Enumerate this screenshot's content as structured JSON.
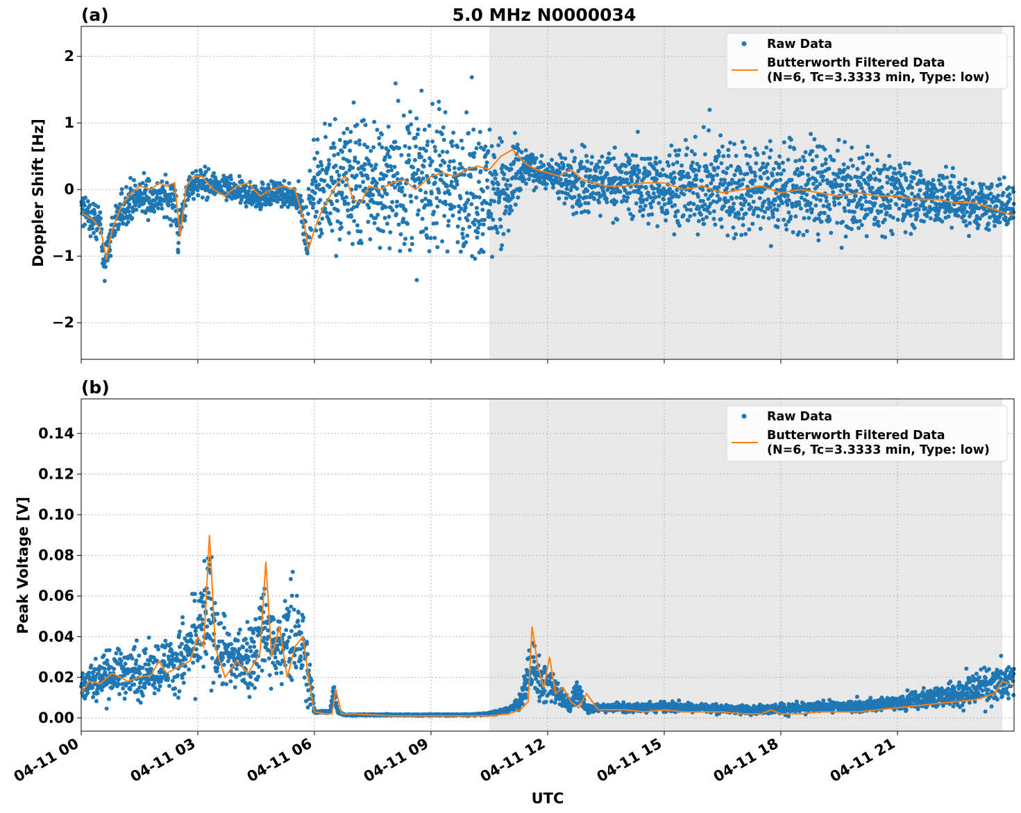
{
  "chart_data": [
    {
      "panel": "(a)",
      "type": "scatter",
      "title": "5.0 MHz N0000034",
      "xlabel": "",
      "ylabel": "Doppler Shift [Hz]",
      "xlim_hours": [
        0,
        24
      ],
      "ylim": [
        -2.55,
        2.45
      ],
      "yticks": [
        -2,
        -1,
        0,
        1,
        2
      ],
      "ytick_labels": [
        "−2",
        "−1",
        "0",
        "1",
        "2"
      ],
      "grid": true,
      "legend_position": "upper right",
      "shaded_region_hours": [
        10.5,
        23.7
      ],
      "series": [
        {
          "name": "Raw Data",
          "kind": "points",
          "color": "#1f77b4",
          "envelope_hours": [
            0,
            0.5,
            0.6,
            0.8,
            1.2,
            2,
            2.4,
            2.5,
            2.8,
            3,
            3.5,
            4,
            4.5,
            5,
            5.6,
            5.8,
            6,
            6.5,
            7,
            8,
            9,
            10,
            10.5,
            11,
            11.3,
            11.5,
            12,
            12.5,
            13,
            13.3,
            14,
            15,
            16,
            17,
            18,
            19,
            20,
            21,
            22,
            23,
            24
          ],
          "envelope_low": [
            -0.7,
            -0.9,
            -1.5,
            -1.0,
            -0.6,
            -0.5,
            -0.6,
            -1.1,
            -0.2,
            -0.2,
            -0.2,
            -0.3,
            -0.4,
            -0.3,
            -0.4,
            -1.2,
            -0.8,
            -1.2,
            -1.3,
            -1.4,
            -1.3,
            -1.4,
            -1.3,
            -1.2,
            -0.4,
            0.0,
            -0.1,
            -0.3,
            -0.9,
            -0.6,
            -0.6,
            -0.8,
            -0.9,
            -1.0,
            -1.0,
            -1.0,
            -0.9,
            -0.8,
            -0.8,
            -0.8,
            -0.7
          ],
          "envelope_high": [
            0.1,
            -0.2,
            -0.8,
            -0.2,
            0.3,
            0.3,
            0.3,
            -0.2,
            0.4,
            0.4,
            0.3,
            0.2,
            0.2,
            0.2,
            0.1,
            -0.1,
            0.8,
            1.5,
            1.6,
            1.6,
            1.6,
            1.5,
            1.3,
            1.0,
            0.8,
            0.7,
            0.5,
            0.6,
            1.0,
            0.8,
            0.8,
            0.9,
            1.0,
            1.1,
            1.0,
            1.0,
            0.8,
            0.7,
            0.5,
            0.3,
            0.1
          ]
        },
        {
          "name": "Butterworth Filtered Data\n(N=6, Tc=3.3333 min, Type: low)",
          "kind": "line",
          "color": "#ff7f0e",
          "x_hours": [
            0,
            0.3,
            0.5,
            0.65,
            0.8,
            1.0,
            1.2,
            1.5,
            1.8,
            2.0,
            2.2,
            2.4,
            2.55,
            2.7,
            2.9,
            3.1,
            3.4,
            3.7,
            4.0,
            4.3,
            4.6,
            4.9,
            5.2,
            5.5,
            5.7,
            5.85,
            6.0,
            6.2,
            6.4,
            6.6,
            6.8,
            7.0,
            7.2,
            7.4,
            7.7,
            8.0,
            8.3,
            8.6,
            9.0,
            9.3,
            9.6,
            9.9,
            10.2,
            10.5,
            10.8,
            11.1,
            11.4,
            11.7,
            12.0,
            12.3,
            12.6,
            12.9,
            13.2,
            13.5,
            14.0,
            14.5,
            15.0,
            15.5,
            16.0,
            16.5,
            17.0,
            17.5,
            18.0,
            18.5,
            19.0,
            19.5,
            20.0,
            20.5,
            21.0,
            21.5,
            22.0,
            22.5,
            23.0,
            23.5,
            24.0
          ],
          "y": [
            -0.35,
            -0.45,
            -0.6,
            -1.05,
            -0.6,
            -0.3,
            -0.1,
            0.05,
            0.0,
            0.1,
            0.05,
            0.1,
            -0.7,
            0.05,
            0.2,
            0.2,
            0.0,
            -0.1,
            0.05,
            0.1,
            -0.1,
            0.0,
            0.05,
            0.0,
            -0.4,
            -0.9,
            -0.6,
            -0.3,
            -0.1,
            0.1,
            0.2,
            -0.15,
            -0.2,
            0.05,
            0.0,
            0.1,
            0.15,
            0.0,
            0.2,
            0.25,
            0.2,
            0.3,
            0.35,
            0.3,
            0.5,
            0.6,
            0.4,
            0.3,
            0.25,
            0.2,
            0.3,
            0.15,
            0.1,
            0.05,
            0.05,
            0.1,
            0.1,
            0.0,
            0.05,
            -0.05,
            0.0,
            0.05,
            -0.05,
            0.0,
            -0.05,
            -0.1,
            -0.05,
            -0.1,
            -0.1,
            -0.15,
            -0.15,
            -0.2,
            -0.2,
            -0.3,
            -0.4
          ]
        }
      ]
    },
    {
      "panel": "(b)",
      "type": "scatter",
      "title": "",
      "xlabel": "UTC",
      "ylabel": "Peak Voltage [V]",
      "xlim_hours": [
        0,
        24
      ],
      "ylim": [
        -0.0065,
        0.157
      ],
      "yticks": [
        0.0,
        0.02,
        0.04,
        0.06,
        0.08,
        0.1,
        0.12,
        0.14
      ],
      "ytick_labels": [
        "0.00",
        "0.02",
        "0.04",
        "0.06",
        "0.08",
        "0.10",
        "0.12",
        "0.14"
      ],
      "xticks_hours": [
        0,
        3,
        6,
        9,
        12,
        15,
        18,
        21
      ],
      "xtick_labels": [
        "04-11 00",
        "04-11 03",
        "04-11 06",
        "04-11 09",
        "04-11 12",
        "04-11 15",
        "04-11 18",
        "04-11 21"
      ],
      "grid": true,
      "legend_position": "upper right",
      "shaded_region_hours": [
        10.5,
        23.7
      ],
      "series": [
        {
          "name": "Raw Data",
          "kind": "points",
          "color": "#1f77b4",
          "envelope_hours": [
            0,
            0.5,
            1,
            1.5,
            2,
            2.5,
            3,
            3.3,
            3.5,
            4,
            4.5,
            4.7,
            5,
            5.3,
            5.5,
            5.7,
            5.9,
            6.0,
            6.4,
            6.5,
            6.6,
            6.8,
            8,
            10,
            10.5,
            11,
            11.3,
            11.5,
            11.6,
            11.8,
            12,
            12.3,
            12.6,
            12.8,
            13,
            13.5,
            14,
            15,
            16,
            17,
            18,
            19,
            20,
            21,
            22,
            23,
            24
          ],
          "envelope_low": [
            0.004,
            0.005,
            0.006,
            0.005,
            0.006,
            0.006,
            0.007,
            0.008,
            0.007,
            0.006,
            0.006,
            0.008,
            0.006,
            0.006,
            0.006,
            0.005,
            0.003,
            0.002,
            0.002,
            0.004,
            0.002,
            0.001,
            0.001,
            0.001,
            0.001,
            0.002,
            0.003,
            0.005,
            0.005,
            0.004,
            0.003,
            0.003,
            0.002,
            0.002,
            0.002,
            0.002,
            0.002,
            0.002,
            0.002,
            0.001,
            0.001,
            0.002,
            0.002,
            0.002,
            0.003,
            0.003,
            0.004
          ],
          "envelope_high": [
            0.03,
            0.035,
            0.04,
            0.038,
            0.045,
            0.05,
            0.07,
            0.1,
            0.06,
            0.05,
            0.06,
            0.09,
            0.055,
            0.07,
            0.08,
            0.065,
            0.03,
            0.004,
            0.004,
            0.025,
            0.004,
            0.002,
            0.002,
            0.002,
            0.003,
            0.006,
            0.012,
            0.04,
            0.045,
            0.03,
            0.03,
            0.02,
            0.01,
            0.025,
            0.008,
            0.008,
            0.008,
            0.009,
            0.008,
            0.007,
            0.008,
            0.009,
            0.01,
            0.012,
            0.018,
            0.025,
            0.035
          ]
        },
        {
          "name": "Butterworth Filtered Data\n(N=6, Tc=3.3333 min, Type: low)",
          "kind": "line",
          "color": "#ff7f0e",
          "x_hours": [
            0,
            0.2,
            0.5,
            0.8,
            1.0,
            1.2,
            1.5,
            1.8,
            2.0,
            2.2,
            2.5,
            2.8,
            3.0,
            3.15,
            3.3,
            3.45,
            3.7,
            4.0,
            4.3,
            4.6,
            4.75,
            4.9,
            5.1,
            5.3,
            5.5,
            5.7,
            5.85,
            6.0,
            6.3,
            6.45,
            6.55,
            6.7,
            7.0,
            8.0,
            9.0,
            10.0,
            10.5,
            11.0,
            11.3,
            11.5,
            11.6,
            11.75,
            11.9,
            12.05,
            12.2,
            12.4,
            12.6,
            12.8,
            13.0,
            13.3,
            13.6,
            14.0,
            14.5,
            15.0,
            15.5,
            16.0,
            16.5,
            17.0,
            17.5,
            17.75,
            18.0,
            18.5,
            19.0,
            19.5,
            20.0,
            20.5,
            21.0,
            21.5,
            22.0,
            22.5,
            23.0,
            23.5,
            23.7,
            24.0
          ],
          "y": [
            0.012,
            0.018,
            0.017,
            0.022,
            0.02,
            0.018,
            0.02,
            0.021,
            0.028,
            0.022,
            0.025,
            0.028,
            0.04,
            0.035,
            0.09,
            0.035,
            0.02,
            0.028,
            0.022,
            0.032,
            0.077,
            0.03,
            0.045,
            0.02,
            0.035,
            0.04,
            0.02,
            0.003,
            0.002,
            0.002,
            0.014,
            0.002,
            0.002,
            0.001,
            0.001,
            0.001,
            0.001,
            0.002,
            0.004,
            0.008,
            0.045,
            0.025,
            0.015,
            0.03,
            0.012,
            0.015,
            0.008,
            0.005,
            0.012,
            0.004,
            0.004,
            0.004,
            0.003,
            0.004,
            0.003,
            0.003,
            0.003,
            0.002,
            0.002,
            0.004,
            0.002,
            0.002,
            0.003,
            0.003,
            0.003,
            0.004,
            0.005,
            0.006,
            0.007,
            0.008,
            0.009,
            0.012,
            0.018,
            0.016
          ]
        }
      ]
    }
  ],
  "legend_labels": {
    "raw": "Raw Data",
    "filtered_line1": "Butterworth Filtered Data",
    "filtered_line2": "(N=6, Tc=3.3333 min, Type: low)"
  },
  "colors": {
    "raw": "#1f77b4",
    "filtered": "#ff7f0e",
    "shade": "#e8e8e8"
  }
}
